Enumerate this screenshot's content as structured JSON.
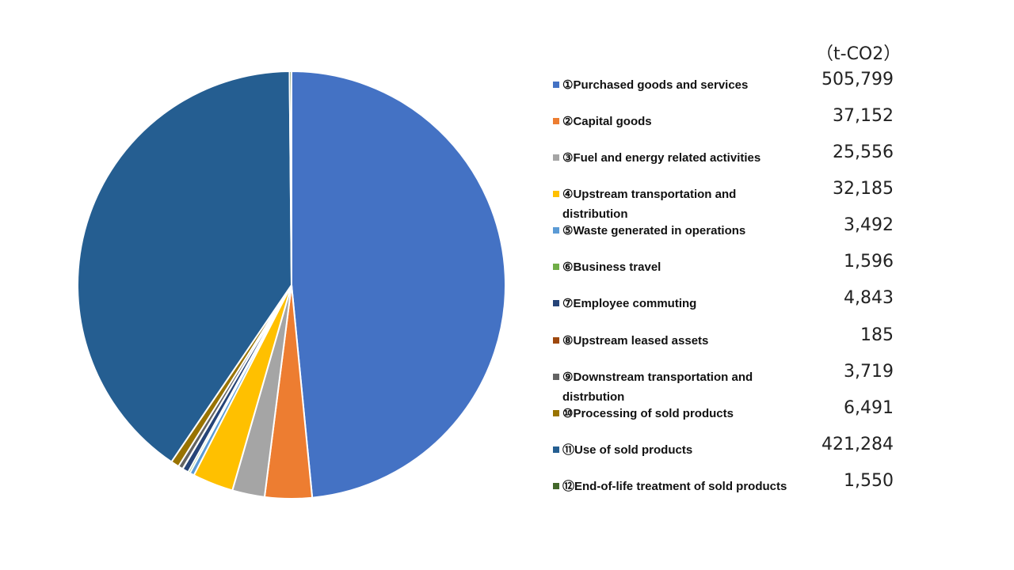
{
  "chart_data": {
    "type": "pie",
    "unit": "（t-CO2）",
    "categories": [
      "①Purchased goods and services",
      "②Capital goods",
      "③Fuel and energy related activities",
      "④Upstream transportation and distribution",
      "⑤Waste generated in operations",
      "⑥Business travel",
      "⑦Employee commuting",
      "⑧Upstream leased assets",
      "⑨Downstream transportation and distrbution",
      "⑩Processing of sold products",
      "⑪Use of sold products",
      "⑫End-of-life treatment of sold products"
    ],
    "values": [
      505799,
      37152,
      25556,
      32185,
      3492,
      1596,
      4843,
      185,
      3719,
      6491,
      421284,
      1550
    ],
    "value_labels": [
      "505,799",
      "37,152",
      "25,556",
      "32,185",
      "3,492",
      "1,596",
      "4,843",
      "185",
      "3,719",
      "6,491",
      "421,284",
      "1,550"
    ],
    "colors": [
      "#4472C4",
      "#ED7D31",
      "#A5A5A5",
      "#FFC000",
      "#5B9BD5",
      "#70AD47",
      "#264478",
      "#9E480E",
      "#636363",
      "#997300",
      "#255E91",
      "#43682B"
    ],
    "legend_position": "right"
  }
}
